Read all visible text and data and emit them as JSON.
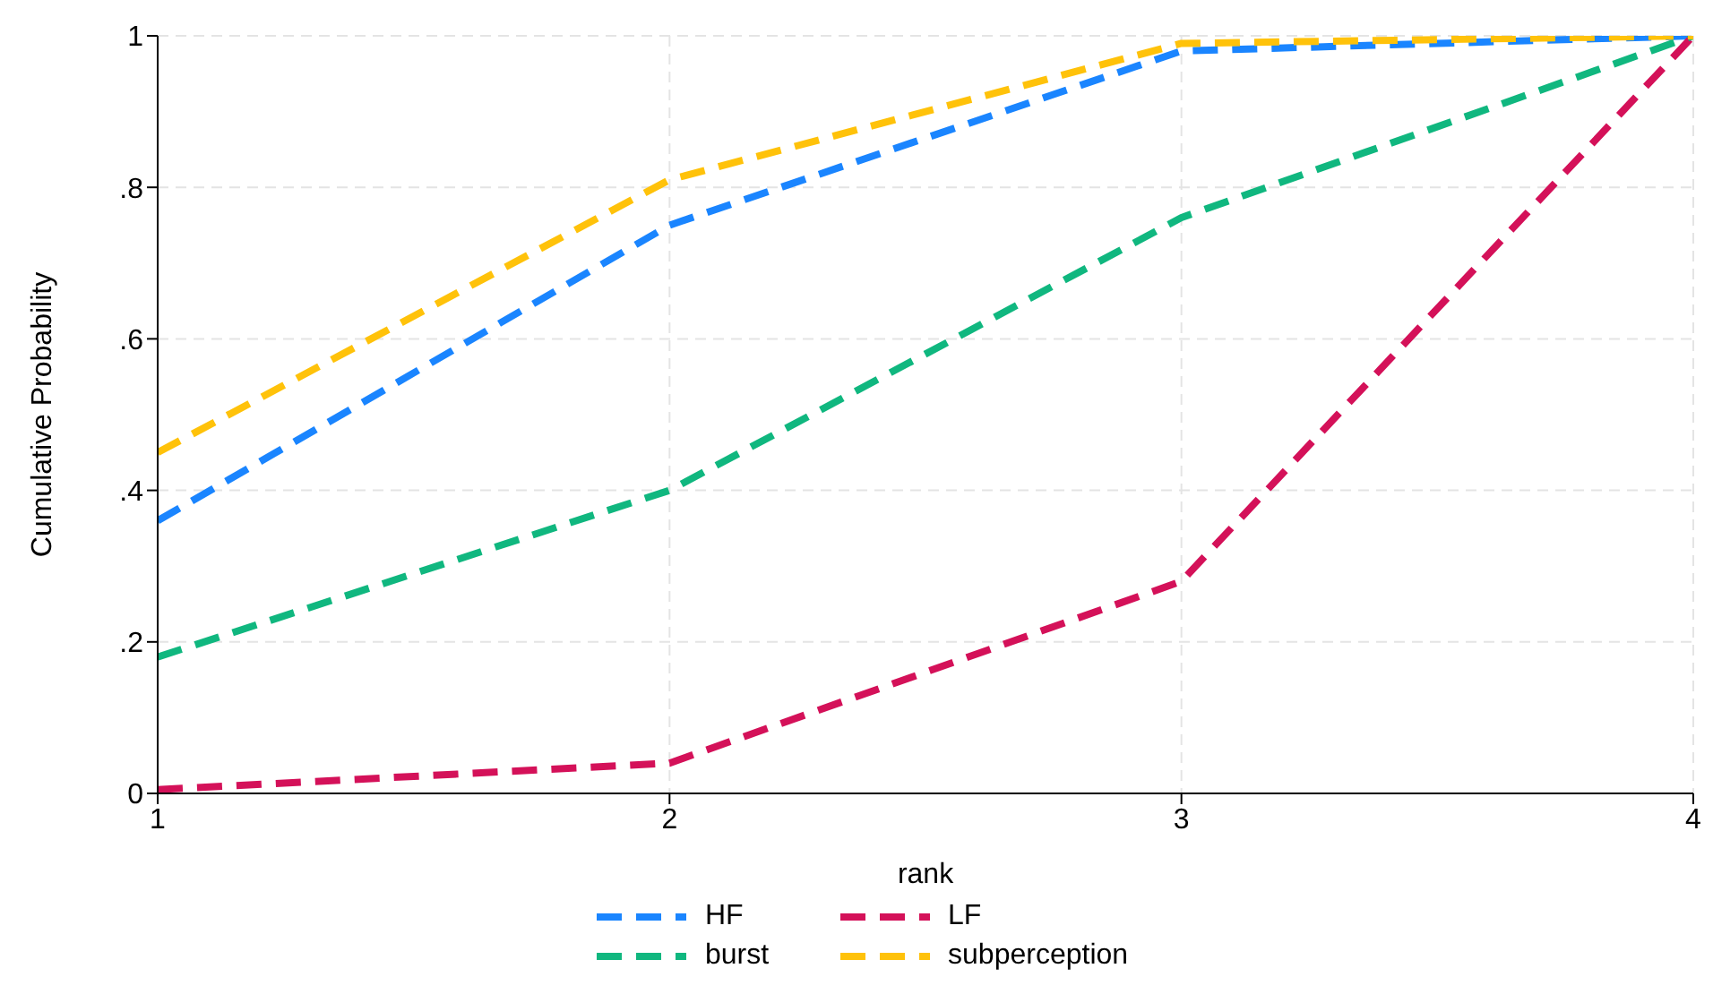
{
  "chart_data": {
    "type": "line",
    "xlabel": "rank",
    "ylabel": "Cumulative Probability",
    "x": [
      1,
      2,
      3,
      4
    ],
    "series": [
      {
        "name": "HF",
        "color": "#1a85ff",
        "values": [
          0.36,
          0.75,
          0.98,
          1.0
        ]
      },
      {
        "name": "LF",
        "color": "#d41159",
        "values": [
          0.005,
          0.04,
          0.28,
          1.0
        ]
      },
      {
        "name": "burst",
        "color": "#10b77f",
        "values": [
          0.18,
          0.4,
          0.76,
          1.0
        ]
      },
      {
        "name": "subperception",
        "color": "#ffc20a",
        "values": [
          0.45,
          0.81,
          0.99,
          1.0
        ]
      }
    ],
    "xlim": [
      1,
      4
    ],
    "xticks": [
      1,
      2,
      3,
      4
    ],
    "ylim": [
      0,
      1
    ],
    "yticks": [
      0,
      {
        "value": 0.2,
        "label": ".2"
      },
      {
        "value": 0.4,
        "label": ".4"
      },
      {
        "value": 0.6,
        "label": ".6"
      },
      {
        "value": 0.8,
        "label": ".8"
      },
      1
    ],
    "grid": true,
    "legend": "bottom",
    "marker": "none",
    "line_style": "dashed"
  }
}
